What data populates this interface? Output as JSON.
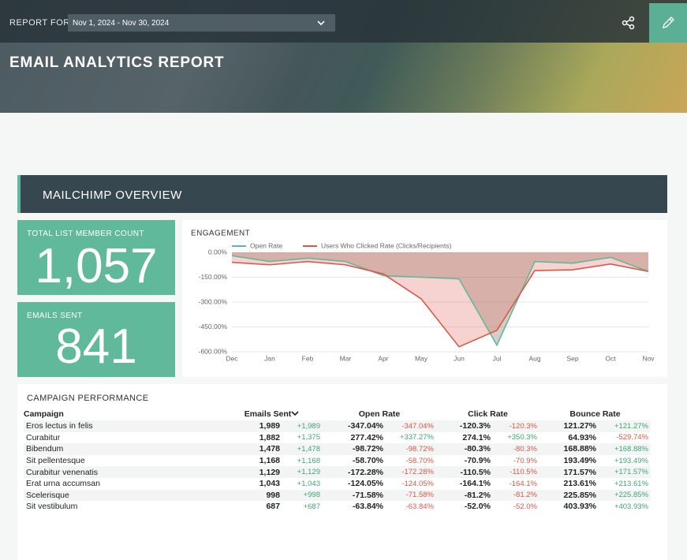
{
  "header": {
    "report_for": "REPORT FOR",
    "date_range": "Nov 1, 2024 - Nov 30, 2024",
    "title": "EMAIL ANALYTICS REPORT"
  },
  "section_title": "MAILCHIMP OVERVIEW",
  "kpis": [
    {
      "label": "TOTAL LIST MEMBER COUNT",
      "value": "1,057"
    },
    {
      "label": "EMAILS SENT",
      "value": "841"
    }
  ],
  "chart_data": {
    "type": "line",
    "title": "ENGAGEMENT",
    "categories": [
      "Dec",
      "Jan",
      "Feb",
      "Mar",
      "Apr",
      "May",
      "Jun",
      "Jul",
      "Aug",
      "Sep",
      "Oct",
      "Nov"
    ],
    "series": [
      {
        "name": "Open Rate",
        "color": "#5fb99a",
        "values": [
          -20,
          -55,
          -35,
          -55,
          -140,
          -150,
          -160,
          -560,
          -55,
          -65,
          -30,
          -115
        ]
      },
      {
        "name": "Users Who Clicked Rate (Clicks/Recipients)",
        "color": "#d9584a",
        "values": [
          -60,
          -75,
          -55,
          -75,
          -130,
          -280,
          -570,
          -470,
          -110,
          -105,
          -70,
          -115
        ]
      }
    ],
    "ylim": [
      -600,
      0
    ],
    "yticks": [
      {
        "value": 0,
        "label": "0.00%"
      },
      {
        "value": -150,
        "label": "-150.00%"
      },
      {
        "value": -300,
        "label": "-300.00%"
      },
      {
        "value": -450,
        "label": "-450.00%"
      },
      {
        "value": -600,
        "label": "-600.00%"
      }
    ],
    "grid": true
  },
  "table": {
    "title": "CAMPAIGN PERFORMANCE",
    "headers": [
      "Campaign",
      "Emails Sent",
      "Open Rate",
      "Click Rate",
      "Bounce Rate"
    ],
    "rows": [
      [
        "Eros lectus in felis",
        "1,989",
        "+1,989",
        "-347.04%",
        "-347.04%",
        "-120.3%",
        "-120.3%",
        "121.27%",
        "+121.27%"
      ],
      [
        "Curabitur",
        "1,882",
        "+1,375",
        "277.42%",
        "+337.27%",
        "274.1%",
        "+350.3%",
        "64.93%",
        "-529.74%"
      ],
      [
        "Bibendum",
        "1,478",
        "+1,478",
        "-98.72%",
        "-98.72%",
        "-80.3%",
        "-80.3%",
        "168.88%",
        "+168.88%"
      ],
      [
        "Sit pellentesque",
        "1,168",
        "+1,168",
        "-58.70%",
        "-58.70%",
        "-70.9%",
        "-70.9%",
        "193.49%",
        "+193.49%"
      ],
      [
        "Curabitur venenatis",
        "1,129",
        "+1,129",
        "-172.28%",
        "-172.28%",
        "-110.5%",
        "-110.5%",
        "171.57%",
        "+171.57%"
      ],
      [
        "Erat urna accumsan",
        "1,043",
        "+1,043",
        "-124.05%",
        "-124.05%",
        "-164.1%",
        "-164.1%",
        "213.61%",
        "+213.61%"
      ],
      [
        "Scelerisque",
        "998",
        "+998",
        "-71.58%",
        "-71.58%",
        "-81.2%",
        "-81.2%",
        "225.85%",
        "+225.85%"
      ],
      [
        "Sit vestibulum",
        "687",
        "+687",
        "-63.84%",
        "-63.84%",
        "-52.0%",
        "-52.0%",
        "403.93%",
        "+403.93%"
      ]
    ]
  }
}
